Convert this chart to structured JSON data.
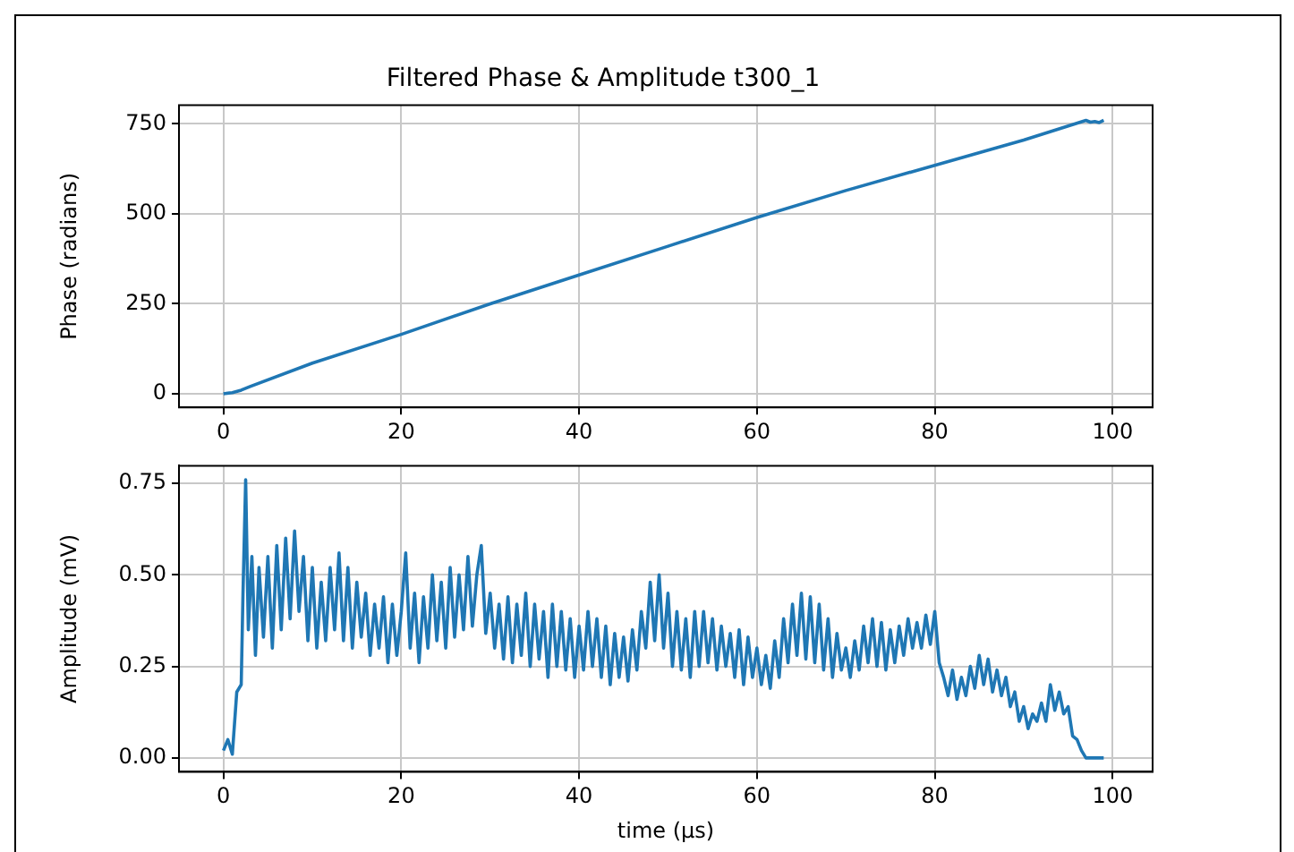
{
  "chart_data": [
    {
      "type": "line",
      "title": "Filtered Phase & Amplitude t300_1",
      "ylabel": "Phase (radians)",
      "grid": true,
      "marker": "none",
      "series": [
        {
          "color": "#1f77b4",
          "x": [
            0,
            1,
            2,
            3,
            10,
            20,
            30,
            40,
            50,
            60,
            70,
            80,
            90,
            97,
            97.5,
            98,
            98.5,
            99
          ],
          "values": [
            0,
            3,
            10,
            20,
            85,
            165,
            250,
            330,
            410,
            490,
            565,
            635,
            705,
            760,
            755,
            757,
            754,
            760
          ]
        }
      ],
      "xlim": [
        -5,
        104.5
      ],
      "xticks": [
        0,
        20,
        40,
        60,
        80,
        100
      ],
      "ylim": [
        -38,
        802
      ],
      "yticks": [
        0,
        250,
        500,
        750
      ]
    },
    {
      "type": "line",
      "xlabel": "time (μs)",
      "ylabel": "Amplitude (mV)",
      "grid": true,
      "marker": "none",
      "series": [
        {
          "color": "#1f77b4",
          "x": [
            0,
            0.5,
            1,
            1.5,
            2,
            2.2,
            2.5,
            2.8,
            3.2,
            3.6,
            4,
            4.5,
            5,
            5.5,
            6,
            6.5,
            7,
            7.5,
            8,
            8.5,
            9,
            9.5,
            10,
            10.5,
            11,
            11.5,
            12,
            12.5,
            13,
            13.5,
            14,
            14.5,
            15,
            15.5,
            16,
            16.5,
            17,
            17.5,
            18,
            18.5,
            19,
            19.5,
            20,
            20.5,
            21,
            21.5,
            22,
            22.5,
            23,
            23.5,
            24,
            24.5,
            25,
            25.5,
            26,
            26.5,
            27,
            27.5,
            28,
            28.5,
            29,
            29.5,
            30,
            30.5,
            31,
            31.5,
            32,
            32.5,
            33,
            33.5,
            34,
            34.5,
            35,
            35.5,
            36,
            36.5,
            37,
            37.5,
            38,
            38.5,
            39,
            39.5,
            40,
            40.5,
            41,
            41.5,
            42,
            42.5,
            43,
            43.5,
            44,
            44.5,
            45,
            45.5,
            46,
            46.5,
            47,
            47.5,
            48,
            48.5,
            49,
            49.5,
            50,
            50.5,
            51,
            51.5,
            52,
            52.5,
            53,
            53.5,
            54,
            54.5,
            55,
            55.5,
            56,
            56.5,
            57,
            57.5,
            58,
            58.5,
            59,
            59.5,
            60,
            60.5,
            61,
            61.5,
            62,
            62.5,
            63,
            63.5,
            64,
            64.5,
            65,
            65.5,
            66,
            66.5,
            67,
            67.5,
            68,
            68.5,
            69,
            69.5,
            70,
            70.5,
            71,
            71.5,
            72,
            72.5,
            73,
            73.5,
            74,
            74.5,
            75,
            75.5,
            76,
            76.5,
            77,
            77.5,
            78,
            78.5,
            79,
            79.5,
            80,
            80.5,
            81,
            81.5,
            82,
            82.5,
            83,
            83.5,
            84,
            84.5,
            85,
            85.5,
            86,
            86.5,
            87,
            87.5,
            88,
            88.5,
            89,
            89.5,
            90,
            90.5,
            91,
            91.5,
            92,
            92.5,
            93,
            93.5,
            94,
            94.5,
            95,
            95.5,
            96,
            96.5,
            97,
            98,
            99
          ],
          "values": [
            0.02,
            0.05,
            0.01,
            0.18,
            0.2,
            0.45,
            0.76,
            0.35,
            0.55,
            0.28,
            0.52,
            0.33,
            0.55,
            0.3,
            0.58,
            0.35,
            0.6,
            0.38,
            0.62,
            0.4,
            0.55,
            0.32,
            0.52,
            0.3,
            0.48,
            0.32,
            0.52,
            0.35,
            0.56,
            0.32,
            0.52,
            0.3,
            0.48,
            0.33,
            0.45,
            0.28,
            0.42,
            0.3,
            0.44,
            0.26,
            0.42,
            0.28,
            0.4,
            0.56,
            0.3,
            0.45,
            0.26,
            0.44,
            0.3,
            0.5,
            0.32,
            0.48,
            0.3,
            0.52,
            0.33,
            0.5,
            0.35,
            0.55,
            0.36,
            0.5,
            0.58,
            0.34,
            0.45,
            0.3,
            0.42,
            0.27,
            0.44,
            0.26,
            0.42,
            0.28,
            0.45,
            0.25,
            0.42,
            0.27,
            0.4,
            0.22,
            0.42,
            0.25,
            0.4,
            0.24,
            0.38,
            0.22,
            0.36,
            0.24,
            0.4,
            0.25,
            0.38,
            0.22,
            0.36,
            0.2,
            0.34,
            0.22,
            0.33,
            0.21,
            0.35,
            0.24,
            0.4,
            0.3,
            0.48,
            0.32,
            0.5,
            0.3,
            0.45,
            0.25,
            0.4,
            0.24,
            0.38,
            0.22,
            0.4,
            0.25,
            0.4,
            0.26,
            0.38,
            0.24,
            0.36,
            0.25,
            0.34,
            0.22,
            0.35,
            0.2,
            0.33,
            0.22,
            0.3,
            0.2,
            0.28,
            0.19,
            0.32,
            0.22,
            0.38,
            0.26,
            0.42,
            0.28,
            0.45,
            0.27,
            0.44,
            0.26,
            0.42,
            0.24,
            0.38,
            0.22,
            0.34,
            0.24,
            0.3,
            0.22,
            0.32,
            0.24,
            0.36,
            0.26,
            0.38,
            0.25,
            0.37,
            0.24,
            0.35,
            0.26,
            0.36,
            0.28,
            0.38,
            0.3,
            0.37,
            0.3,
            0.39,
            0.31,
            0.4,
            0.26,
            0.22,
            0.17,
            0.24,
            0.16,
            0.22,
            0.17,
            0.25,
            0.19,
            0.28,
            0.2,
            0.27,
            0.18,
            0.24,
            0.17,
            0.22,
            0.14,
            0.18,
            0.1,
            0.14,
            0.08,
            0.12,
            0.1,
            0.15,
            0.1,
            0.2,
            0.13,
            0.18,
            0.12,
            0.14,
            0.06,
            0.05,
            0.02,
            0,
            0,
            0
          ]
        }
      ],
      "xlim": [
        -5,
        104.5
      ],
      "xticks": [
        0,
        20,
        40,
        60,
        80,
        100
      ],
      "ylim": [
        -0.038,
        0.798
      ],
      "yticks": [
        {
          "value": 0,
          "label": "0.00"
        },
        {
          "value": 0.25,
          "label": "0.25"
        },
        {
          "value": 0.5,
          "label": "0.50"
        },
        {
          "value": 0.75,
          "label": "0.75"
        }
      ]
    }
  ]
}
